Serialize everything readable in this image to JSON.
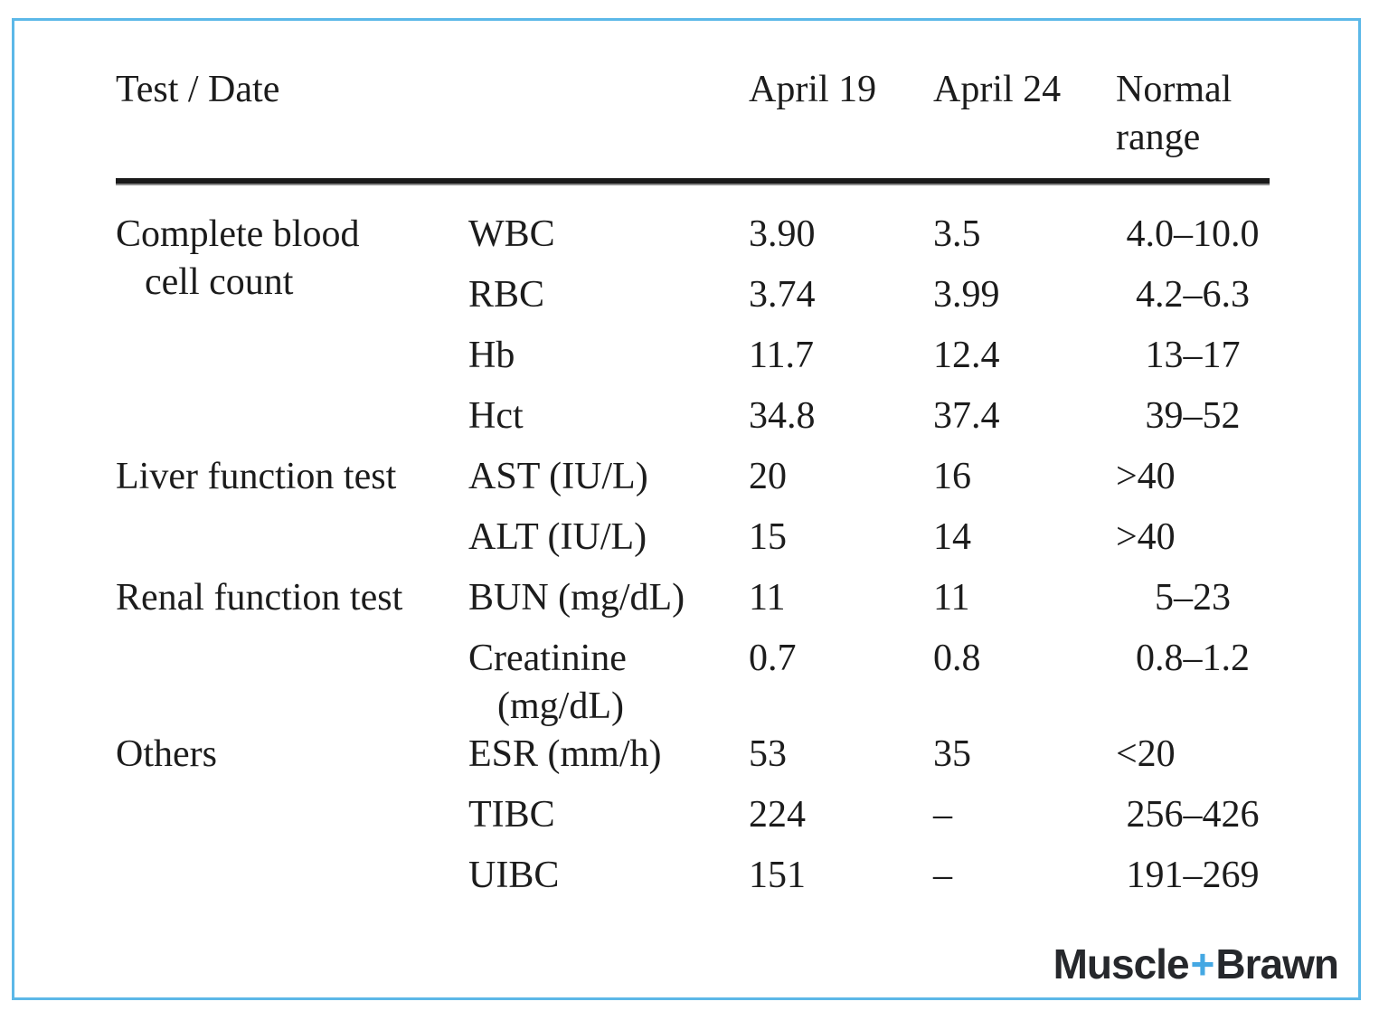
{
  "table": {
    "header": {
      "test_date": "Test / Date",
      "april19": "April 19",
      "april24": "April 24",
      "normal_range": "Normal range"
    },
    "groups": [
      {
        "category_lines": [
          "Complete blood",
          "cell count"
        ],
        "rows": [
          {
            "test_lines": [
              "WBC"
            ],
            "april19": "3.90",
            "april24": "3.5",
            "normal": "4.0–10.0"
          },
          {
            "test_lines": [
              "RBC"
            ],
            "april19": "3.74",
            "april24": "3.99",
            "normal": "4.2–6.3"
          },
          {
            "test_lines": [
              "Hb"
            ],
            "april19": "11.7",
            "april24": "12.4",
            "normal": "13–17"
          },
          {
            "test_lines": [
              "Hct"
            ],
            "april19": "34.8",
            "april24": "37.4",
            "normal": "39–52"
          }
        ]
      },
      {
        "category_lines": [
          "Liver function test"
        ],
        "rows": [
          {
            "test_lines": [
              "AST (IU/L)"
            ],
            "april19": "20",
            "april24": "16",
            "normal": ">40"
          },
          {
            "test_lines": [
              "ALT (IU/L)"
            ],
            "april19": "15",
            "april24": "14",
            "normal": ">40"
          }
        ]
      },
      {
        "category_lines": [
          "Renal function test"
        ],
        "rows": [
          {
            "test_lines": [
              "BUN (mg/dL)"
            ],
            "april19": "11",
            "april24": "11",
            "normal": "5–23"
          },
          {
            "test_lines": [
              "Creatinine",
              "(mg/dL)"
            ],
            "april19": "0.7",
            "april24": "0.8",
            "normal": "0.8–1.2"
          }
        ]
      },
      {
        "category_lines": [
          "Others"
        ],
        "rows": [
          {
            "test_lines": [
              "ESR (mm/h)"
            ],
            "april19": "53",
            "april24": "35",
            "normal": "<20"
          },
          {
            "test_lines": [
              "TIBC"
            ],
            "april19": "224",
            "april24": "–",
            "normal": "256–426"
          },
          {
            "test_lines": [
              "UIBC"
            ],
            "april19": "151",
            "april24": "–",
            "normal": "191–269"
          }
        ]
      }
    ]
  },
  "logo": {
    "word1": "Muscle",
    "plus": "+",
    "word2": "Brawn"
  },
  "colors": {
    "frame_border": "#5cb8e8",
    "table_text": "#1c1c1c",
    "header_rule": "#1a1a1a",
    "logo_text": "#26282c",
    "logo_plus": "#45a8e3"
  }
}
